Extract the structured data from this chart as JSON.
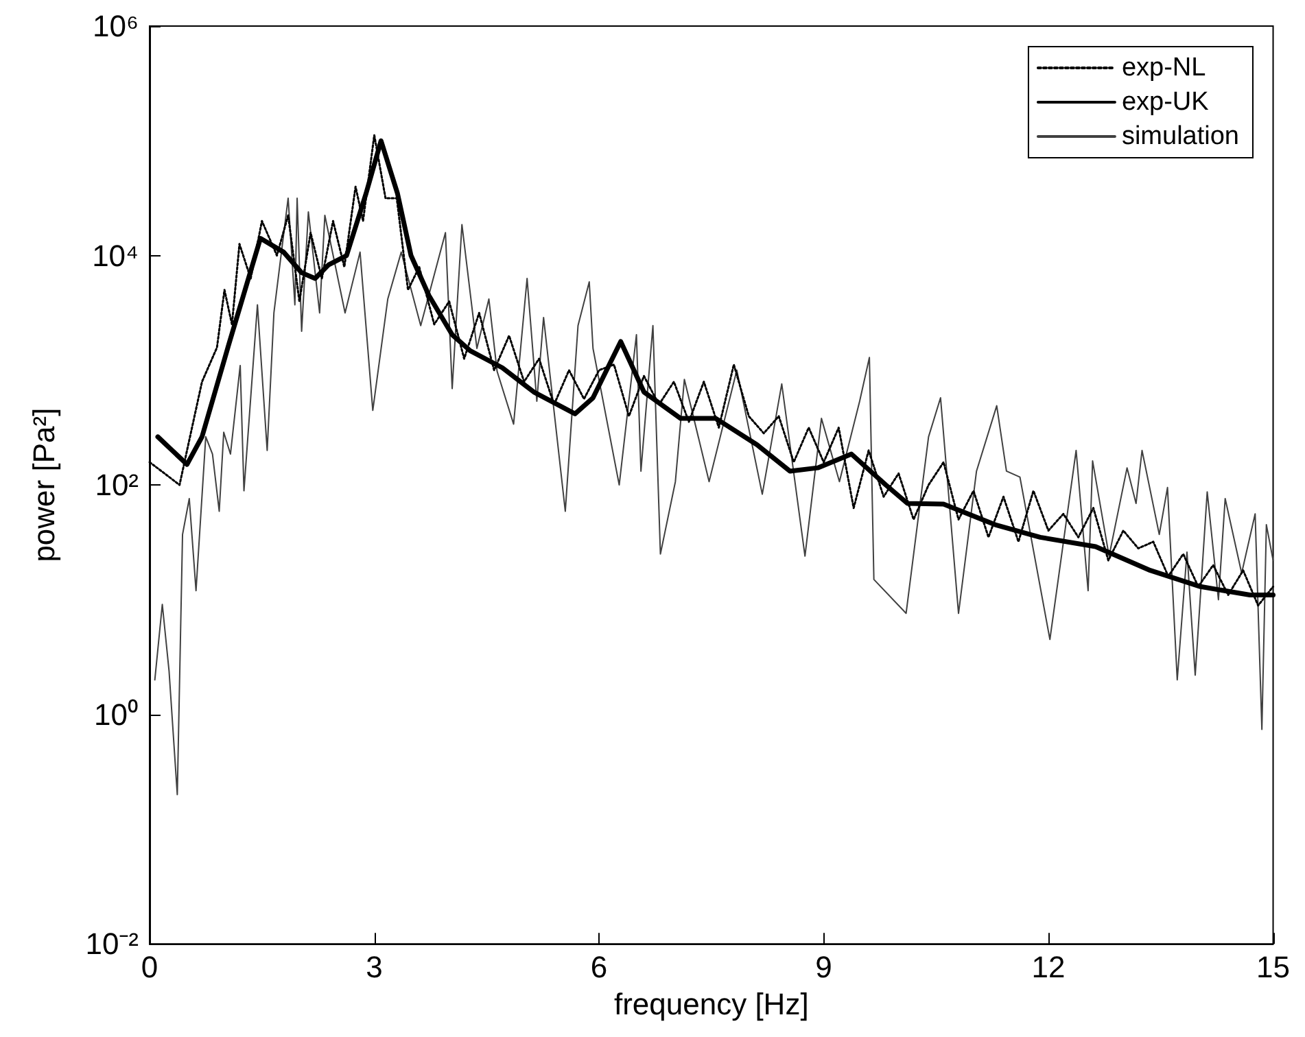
{
  "chart_data": {
    "type": "line",
    "xlabel": "frequency [Hz]",
    "ylabel": "power [Pa²]",
    "log": "y",
    "grid": false,
    "legend": "top right",
    "marker": "none",
    "xlim": [
      0,
      15
    ],
    "xticks": [
      0,
      3,
      6,
      9,
      12,
      15
    ],
    "ylim": [
      0.01,
      1000000
    ],
    "yticks": [
      {
        "value": 0.01,
        "label": "10⁻²"
      },
      {
        "value": 1,
        "label": "10⁰"
      },
      {
        "value": 100,
        "label": "10²"
      },
      {
        "value": 10000,
        "label": "10⁴"
      },
      {
        "value": 1000000,
        "label": "10⁶"
      }
    ],
    "series": [
      {
        "name": "exp-NL",
        "color": "#000000",
        "line_style": "dotted",
        "x": [
          0,
          0.2,
          0.4,
          0.5,
          0.7,
          0.9,
          1.0,
          1.1,
          1.2,
          1.35,
          1.5,
          1.7,
          1.85,
          2.0,
          2.15,
          2.3,
          2.45,
          2.6,
          2.75,
          2.85,
          3.0,
          3.15,
          3.3,
          3.45,
          3.6,
          3.8,
          4.0,
          4.2,
          4.4,
          4.6,
          4.8,
          5.0,
          5.2,
          5.4,
          5.6,
          5.8,
          6.0,
          6.2,
          6.4,
          6.6,
          6.8,
          7.0,
          7.2,
          7.4,
          7.6,
          7.8,
          8.0,
          8.2,
          8.4,
          8.6,
          8.8,
          9.0,
          9.2,
          9.4,
          9.6,
          9.8,
          10.0,
          10.2,
          10.4,
          10.6,
          10.8,
          11.0,
          11.2,
          11.4,
          11.6,
          11.8,
          12.0,
          12.2,
          12.4,
          12.6,
          12.8,
          13.0,
          13.2,
          13.4,
          13.6,
          13.8,
          14.0,
          14.2,
          14.4,
          14.6,
          14.8,
          15.0
        ],
        "values": [
          158,
          126,
          100,
          200,
          794,
          1580,
          5010,
          2510,
          12600,
          6310,
          20000,
          10000,
          22400,
          3980,
          15800,
          6310,
          20000,
          7940,
          39800,
          20000,
          112000,
          31600,
          31600,
          5010,
          7940,
          2510,
          3980,
          1260,
          3160,
          1000,
          2000,
          794,
          1260,
          501,
          1000,
          562,
          1000,
          1120,
          398,
          891,
          501,
          794,
          355,
          794,
          316,
          1120,
          398,
          282,
          398,
          158,
          316,
          158,
          316,
          63,
          200,
          79,
          126,
          50,
          100,
          158,
          50,
          89,
          35,
          79,
          32,
          89,
          40,
          56,
          35,
          63,
          22,
          40,
          28,
          32,
          16,
          25,
          13,
          20,
          11,
          18,
          8.9,
          13
        ]
      },
      {
        "name": "exp-UK",
        "color": "#000000",
        "line_style": "solid",
        "x": [
          0.11,
          0.5,
          0.7,
          1.06,
          1.48,
          1.79,
          2.03,
          2.21,
          2.39,
          2.63,
          2.89,
          3.09,
          3.31,
          3.49,
          3.73,
          4.04,
          4.28,
          4.71,
          5.13,
          5.68,
          5.92,
          6.29,
          6.6,
          7.09,
          7.56,
          8.11,
          8.55,
          8.92,
          9.37,
          9.83,
          10.12,
          10.6,
          11.29,
          11.89,
          12.63,
          13.36,
          14.03,
          14.69,
          15.0
        ],
        "values": [
          263,
          151,
          263,
          1700,
          14100,
          10700,
          7080,
          6310,
          8300,
          10000,
          34700,
          100000,
          34700,
          10000,
          4470,
          2040,
          1480,
          1050,
          646,
          417,
          575,
          1780,
          646,
          380,
          380,
          224,
          132,
          141,
          186,
          100,
          69,
          68,
          45,
          35,
          29,
          18,
          13,
          11,
          11
        ]
      },
      {
        "name": "simulation",
        "color": "#404040",
        "line_style": "solid",
        "x": [
          0.07,
          0.17,
          0.26,
          0.37,
          0.44,
          0.53,
          0.62,
          0.75,
          0.84,
          0.93,
          0.99,
          1.08,
          1.21,
          1.26,
          1.44,
          1.57,
          1.66,
          1.85,
          1.94,
          1.97,
          2.03,
          2.12,
          2.27,
          2.34,
          2.61,
          2.81,
          2.98,
          3.18,
          3.36,
          3.62,
          3.95,
          4.04,
          4.17,
          4.37,
          4.53,
          4.64,
          4.86,
          5.04,
          5.17,
          5.26,
          5.55,
          5.72,
          5.87,
          5.92,
          6.27,
          6.5,
          6.56,
          6.72,
          6.82,
          7.02,
          7.14,
          7.47,
          7.84,
          8.18,
          8.44,
          8.75,
          8.97,
          9.21,
          9.48,
          9.61,
          9.67,
          10.1,
          10.4,
          10.56,
          10.8,
          11.04,
          11.31,
          11.44,
          11.62,
          12.02,
          12.37,
          12.53,
          12.59,
          12.81,
          13.05,
          13.17,
          13.25,
          13.48,
          13.59,
          13.72,
          13.85,
          13.96,
          14.12,
          14.27,
          14.36,
          14.58,
          14.76,
          14.85,
          14.91,
          15.0
        ],
        "values": [
          2.0,
          9.1,
          2.4,
          0.2,
          37,
          76,
          12,
          263,
          186,
          59,
          288,
          186,
          1100,
          89,
          3720,
          200,
          3160,
          31600,
          3720,
          31600,
          2190,
          24000,
          3160,
          22400,
          3160,
          10700,
          447,
          4170,
          10700,
          2450,
          15800,
          692,
          18600,
          1550,
          4170,
          977,
          339,
          6310,
          537,
          2880,
          59,
          2450,
          5890,
          1550,
          100,
          2040,
          132,
          2450,
          25,
          107,
          832,
          107,
          1000,
          83,
          759,
          24,
          380,
          107,
          537,
          1290,
          15,
          7.6,
          263,
          575,
          7.6,
          132,
          490,
          132,
          117,
          4.5,
          200,
          12,
          162,
          24,
          141,
          69,
          200,
          37,
          95,
          2.0,
          26,
          2.2,
          87,
          10,
          76,
          17,
          56,
          0.74,
          45,
          22
        ]
      }
    ]
  }
}
